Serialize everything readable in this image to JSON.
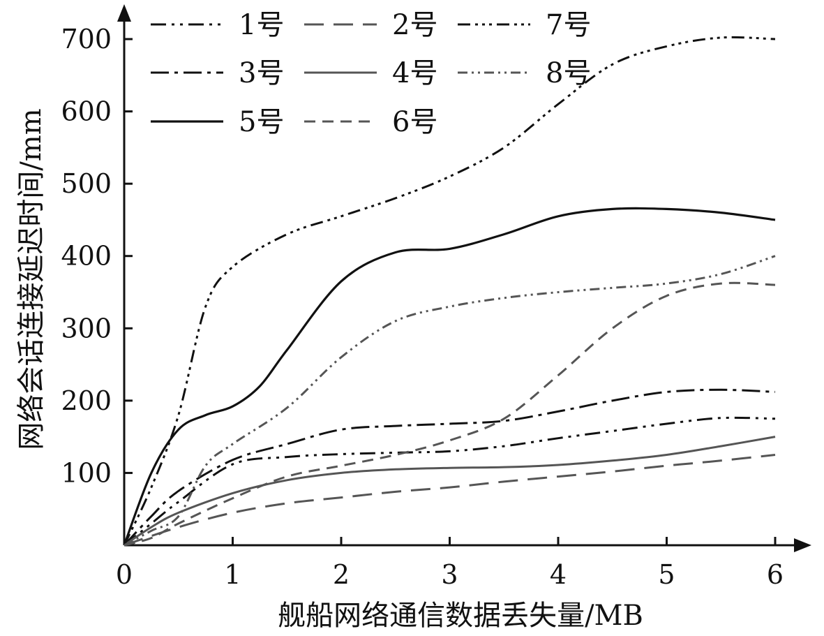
{
  "chart_data": {
    "type": "line",
    "xlabel": "舰船网络通信数据丢失量/MB",
    "ylabel": "网络会话连接延迟时间/mm",
    "xlim": [
      0,
      6
    ],
    "ylim": [
      0,
      700
    ],
    "xticks": [
      "0",
      "1",
      "2",
      "3",
      "4",
      "5",
      "6"
    ],
    "yticks": [
      "100",
      "200",
      "300",
      "400",
      "500",
      "600",
      "700"
    ],
    "grid": false,
    "legend_position": "top-left",
    "series": [
      {
        "name": "1号",
        "color": "#111111",
        "dash": "22 8 4 8 4 8",
        "width": 3,
        "x": [
          0,
          0.25,
          0.5,
          1,
          1.5,
          2,
          2.5,
          3,
          3.5,
          4,
          4.5,
          5,
          5.5,
          6
        ],
        "y": [
          0,
          30,
          60,
          112,
          122,
          126,
          128,
          130,
          137,
          148,
          158,
          168,
          176,
          175
        ]
      },
      {
        "name": "2号",
        "color": "#555555",
        "dash": "28 14",
        "width": 3,
        "x": [
          0,
          0.5,
          1,
          1.5,
          2,
          2.5,
          3,
          3.5,
          4,
          4.5,
          5,
          5.5,
          6
        ],
        "y": [
          0,
          25,
          45,
          58,
          66,
          74,
          80,
          88,
          95,
          102,
          110,
          117,
          125
        ]
      },
      {
        "name": "3号",
        "color": "#111111",
        "dash": "26 8 5 8",
        "width": 3,
        "x": [
          0,
          0.25,
          0.5,
          1,
          1.5,
          2,
          2.5,
          3,
          3.5,
          4,
          4.5,
          5,
          5.5,
          6
        ],
        "y": [
          0,
          40,
          75,
          118,
          140,
          160,
          165,
          168,
          172,
          185,
          200,
          212,
          215,
          212
        ]
      },
      {
        "name": "4号",
        "color": "#555555",
        "dash": "",
        "width": 3,
        "x": [
          0,
          0.25,
          0.5,
          1,
          1.5,
          2,
          2.5,
          3,
          3.5,
          4,
          4.5,
          5,
          5.5,
          6
        ],
        "y": [
          0,
          25,
          45,
          72,
          90,
          100,
          105,
          107,
          108,
          111,
          117,
          125,
          137,
          150
        ]
      },
      {
        "name": "5号",
        "color": "#111111",
        "dash": "",
        "width": 3.2,
        "x": [
          0,
          0.25,
          0.5,
          0.75,
          1,
          1.25,
          1.5,
          2,
          2.5,
          3,
          3.5,
          4,
          4.5,
          5,
          5.5,
          6
        ],
        "y": [
          0,
          100,
          160,
          180,
          192,
          220,
          270,
          365,
          405,
          410,
          430,
          455,
          465,
          465,
          460,
          450
        ]
      },
      {
        "name": "6号",
        "color": "#555555",
        "dash": "16 10",
        "width": 3,
        "x": [
          0,
          0.25,
          0.5,
          1,
          1.5,
          2,
          2.5,
          3,
          3.5,
          4,
          4.5,
          5,
          5.5,
          6
        ],
        "y": [
          0,
          10,
          30,
          65,
          95,
          110,
          125,
          145,
          175,
          235,
          300,
          345,
          362,
          360
        ]
      },
      {
        "name": "7号",
        "color": "#111111",
        "dash": "18 7 4 6 4 6 4 7",
        "width": 3,
        "x": [
          0,
          0.25,
          0.5,
          0.75,
          1,
          1.5,
          2,
          2.5,
          3,
          3.5,
          4,
          4.5,
          5,
          5.5,
          6
        ],
        "y": [
          0,
          80,
          180,
          330,
          385,
          430,
          455,
          480,
          510,
          550,
          610,
          665,
          690,
          702,
          700
        ]
      },
      {
        "name": "8号",
        "color": "#555555",
        "dash": "14 6 3 6 3 6",
        "width": 3,
        "x": [
          0,
          0.25,
          0.5,
          0.75,
          1,
          1.5,
          2,
          2.5,
          3,
          3.5,
          4,
          4.5,
          5,
          5.5,
          6
        ],
        "y": [
          0,
          20,
          40,
          110,
          140,
          190,
          260,
          310,
          330,
          342,
          350,
          356,
          362,
          375,
          400
        ]
      }
    ]
  }
}
